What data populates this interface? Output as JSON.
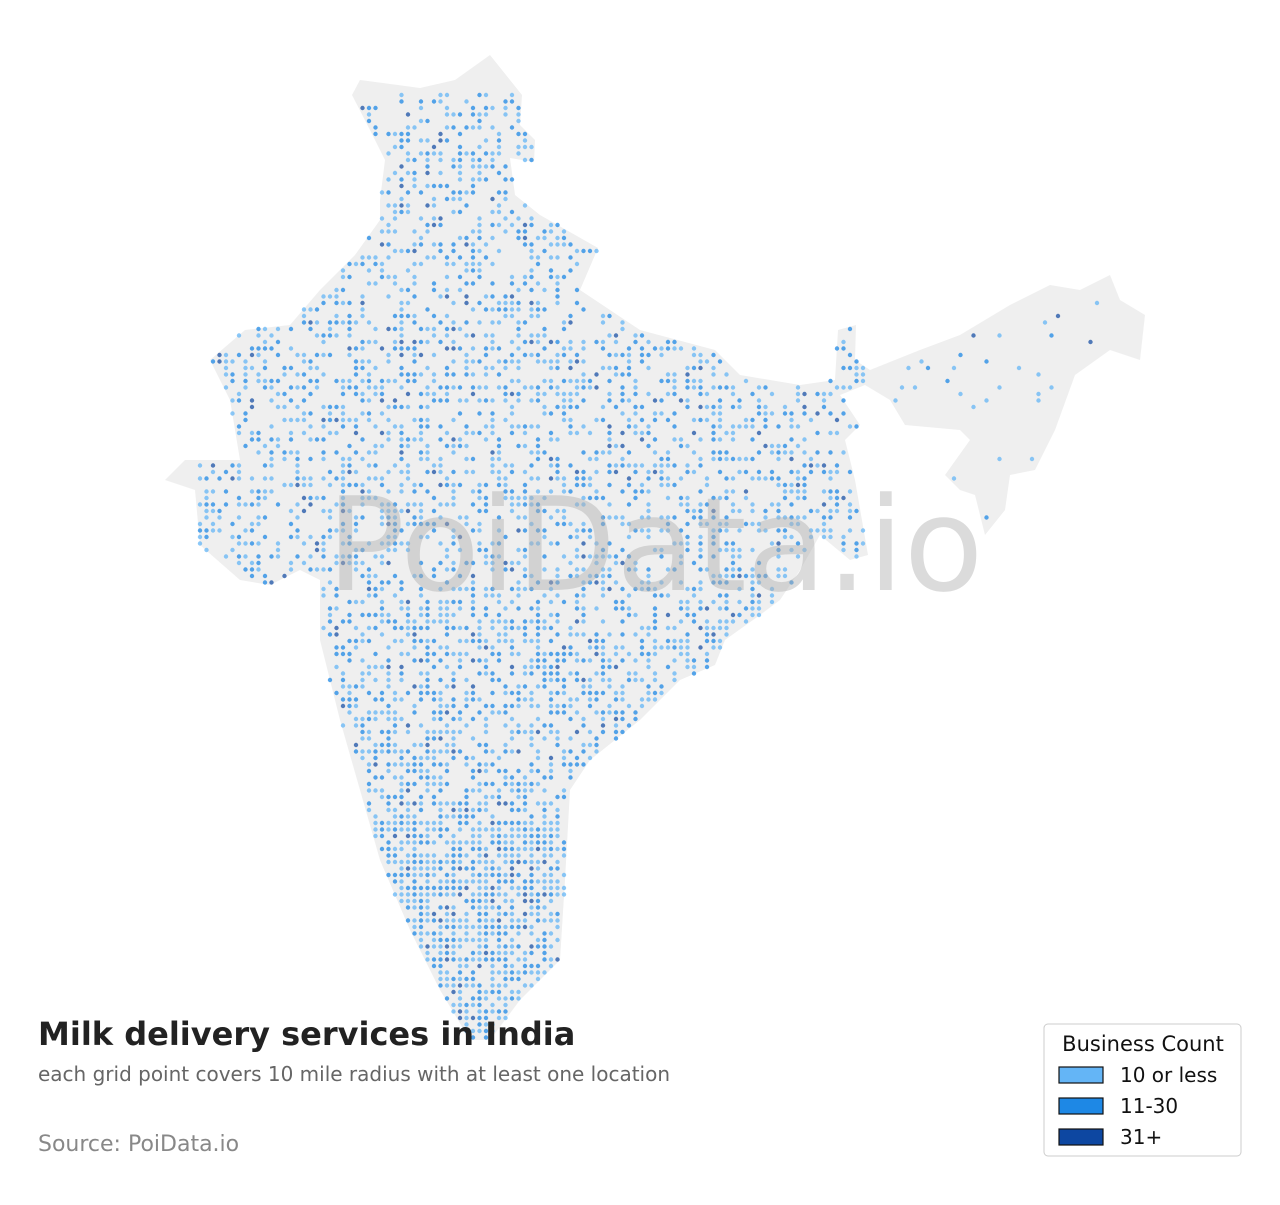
{
  "header": {
    "title": "Milk delivery services in India",
    "subtitle": "each grid point covers 10 mile radius with at least one location",
    "source": "Source: PoiData.io",
    "watermark": "PoiData.io"
  },
  "legend": {
    "title": "Business Count",
    "items": [
      {
        "label": "10 or less",
        "color": "#64b5f6"
      },
      {
        "label": "11-30",
        "color": "#1e88e5"
      },
      {
        "label": "31+",
        "color": "#0d47a1"
      }
    ]
  }
}
